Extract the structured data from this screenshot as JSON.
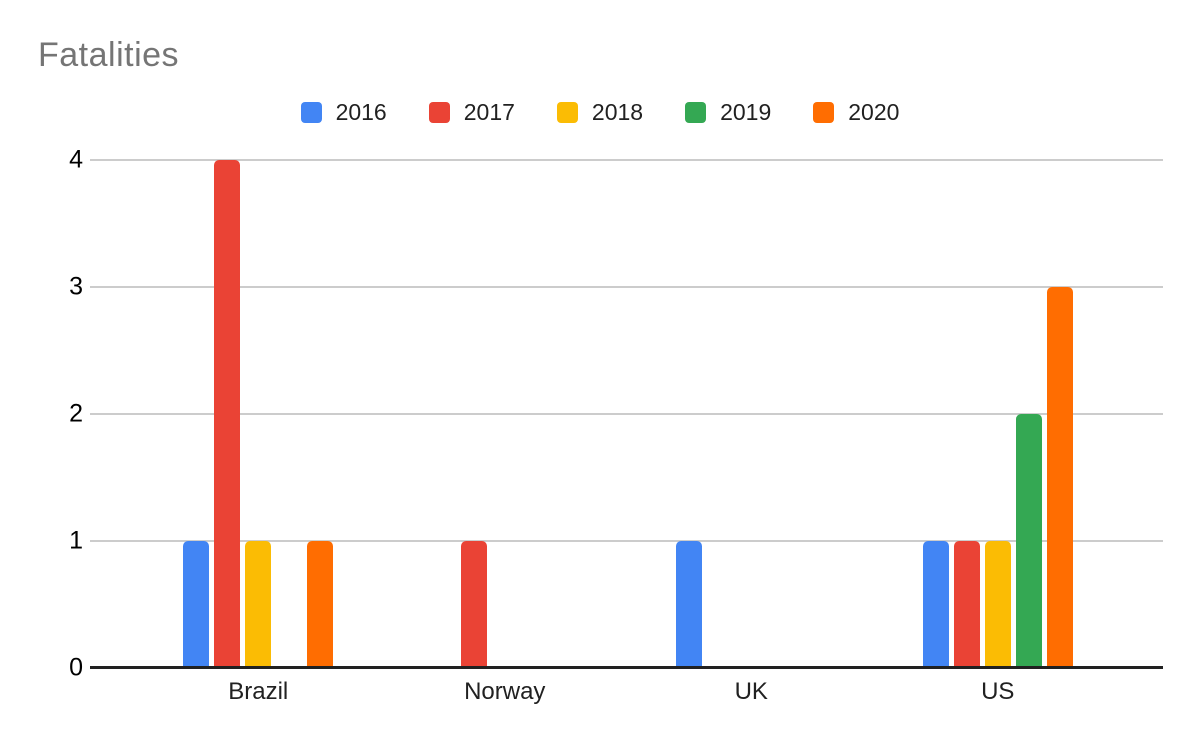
{
  "chart_data": {
    "type": "bar",
    "title": "Fatalities",
    "title_color": "#757575",
    "categories": [
      "Brazil",
      "Norway",
      "UK",
      "US"
    ],
    "series": [
      {
        "name": "2016",
        "color": "#4285F4",
        "values": [
          1,
          0,
          1,
          1
        ]
      },
      {
        "name": "2017",
        "color": "#EA4335",
        "values": [
          4,
          1,
          0,
          1
        ]
      },
      {
        "name": "2018",
        "color": "#FBBC04",
        "values": [
          1,
          0,
          0,
          1
        ]
      },
      {
        "name": "2019",
        "color": "#34A853",
        "values": [
          0,
          0,
          0,
          2
        ]
      },
      {
        "name": "2020",
        "color": "#FF6D01",
        "values": [
          1,
          0,
          0,
          3
        ]
      }
    ],
    "xlabel": "",
    "ylabel": "",
    "ylim": [
      0,
      4
    ],
    "yticks": [
      0,
      1,
      2,
      3,
      4
    ],
    "grid": true,
    "gridline_color": "#cccccc",
    "axis_line_color": "#212121",
    "legend_position": "top"
  }
}
